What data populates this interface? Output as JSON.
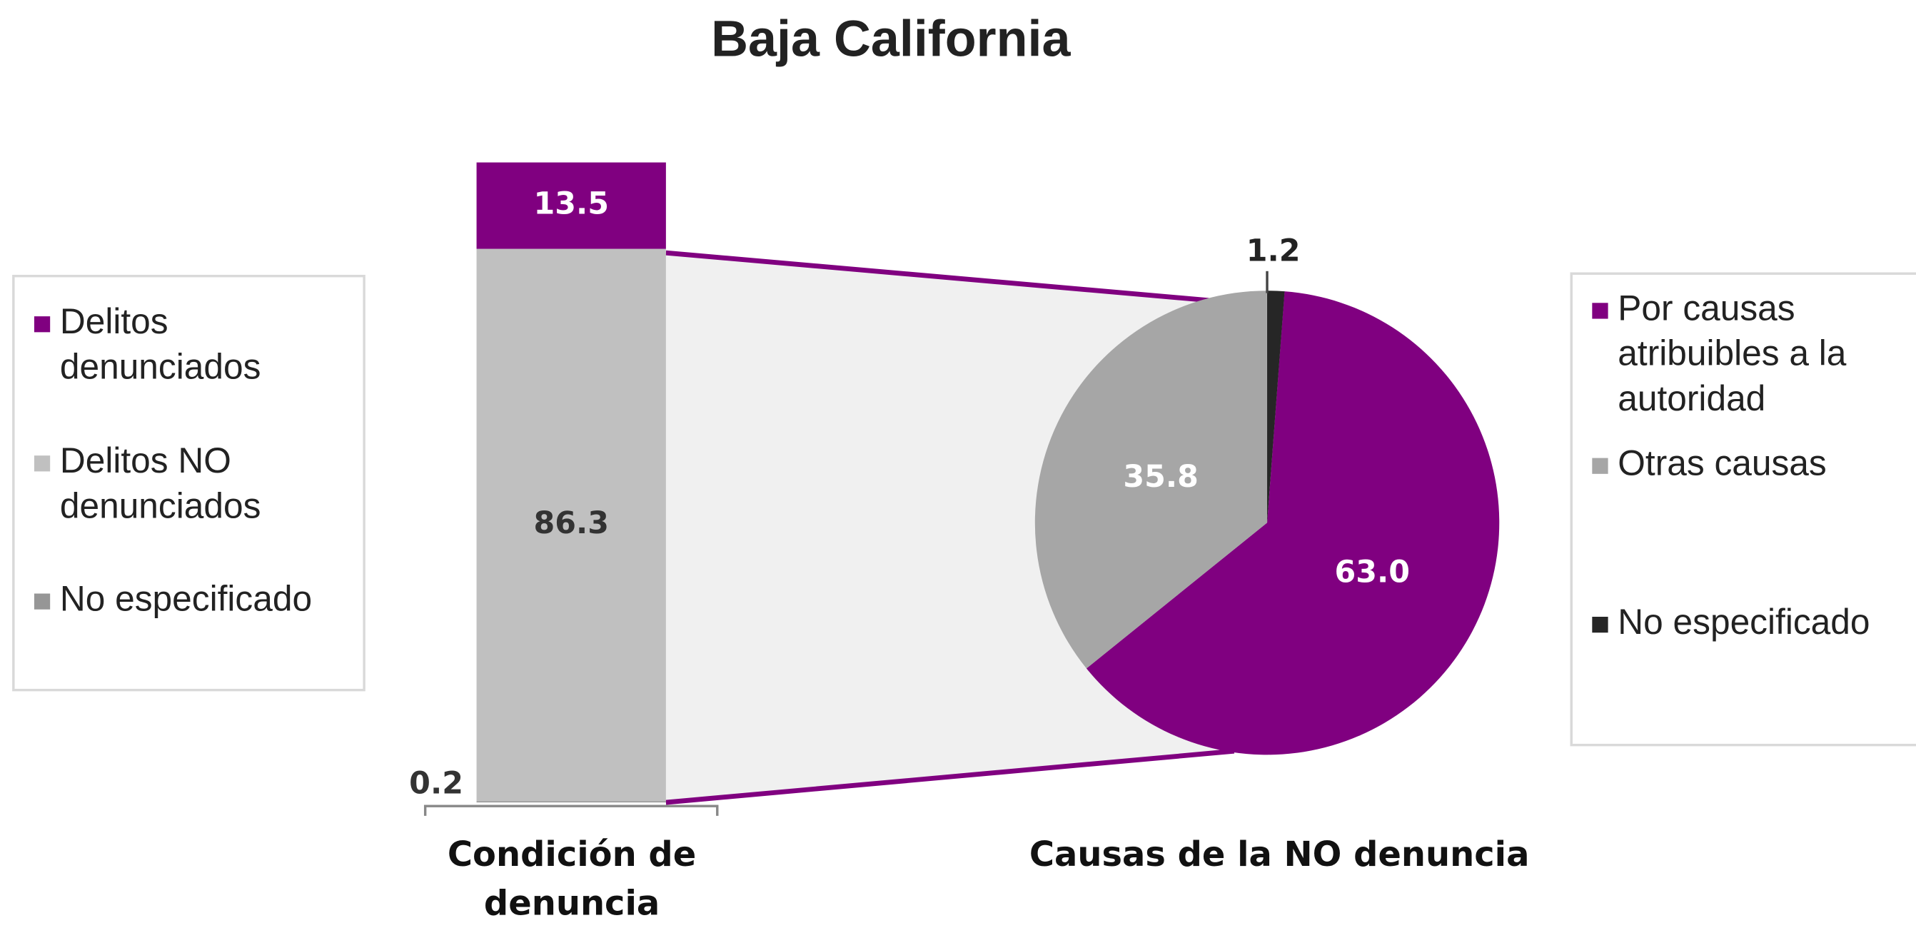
{
  "title": "Baja California",
  "chart_data": [
    {
      "type": "bar",
      "stacked": true,
      "categories": [
        "Condición de denuncia"
      ],
      "series": [
        {
          "name": "Delitos denunciados",
          "color": "#800080",
          "values": [
            13.5
          ]
        },
        {
          "name": "Delitos NO denunciados",
          "color": "#c0c0c0",
          "values": [
            86.3
          ]
        },
        {
          "name": "No especificado",
          "color": "#969696",
          "values": [
            0.2
          ]
        }
      ]
    },
    {
      "type": "pie",
      "xlabel": "Causas de la NO denuncia",
      "categories": [
        "Por causas atribuibles a la autoridad",
        "Otras causas",
        "No especificado"
      ],
      "values": [
        63.0,
        35.8,
        1.2
      ],
      "value_labels": [
        "63.0",
        "35.8",
        "1.2"
      ],
      "colors": [
        "#800080",
        "#a6a6a6",
        "#262626"
      ]
    }
  ]
}
